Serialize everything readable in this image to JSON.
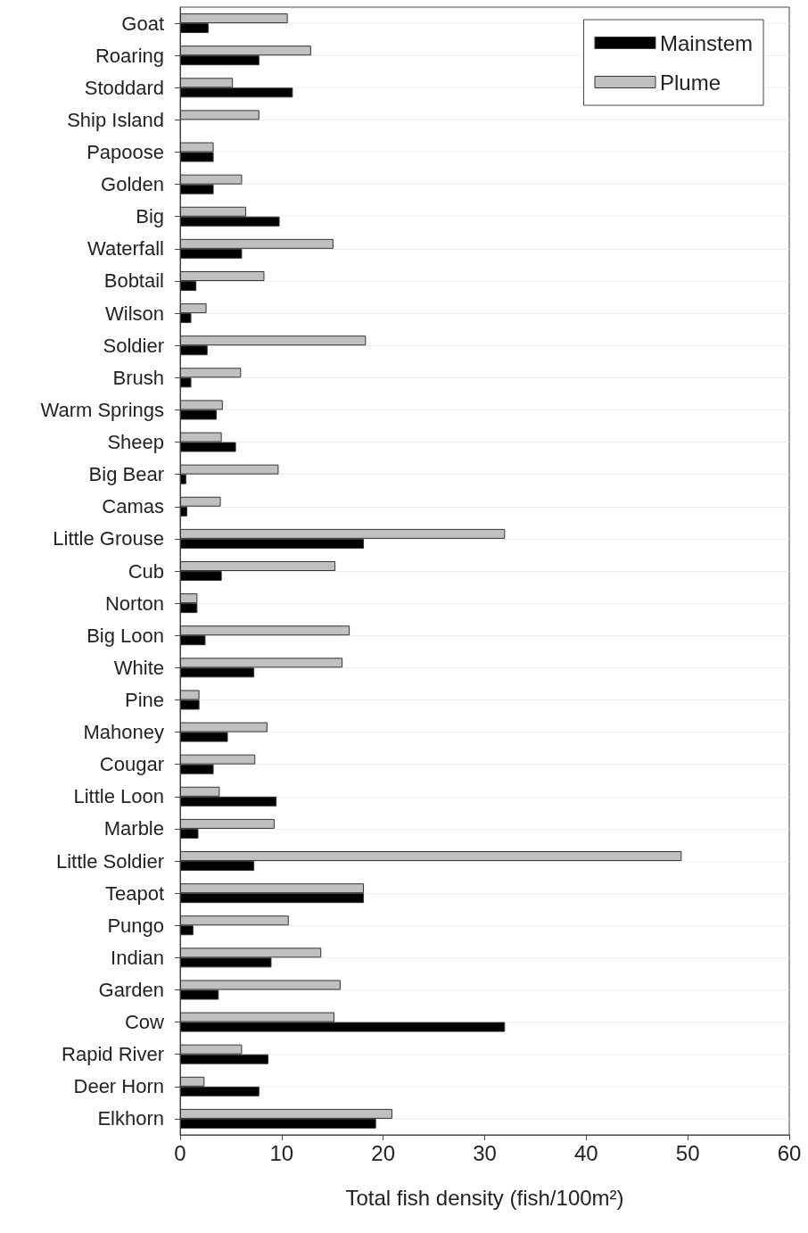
{
  "chart_data": {
    "type": "bar",
    "orientation": "horizontal",
    "xlabel": "Total fish density (fish/100m²)",
    "categories": [
      "Goat",
      "Roaring",
      "Stoddard",
      "Ship Island",
      "Papoose",
      "Golden",
      "Big",
      "Waterfall",
      "Bobtail",
      "Wilson",
      "Soldier",
      "Brush",
      "Warm Springs",
      "Sheep",
      "Big Bear",
      "Camas",
      "Little Grouse",
      "Cub",
      "Norton",
      "Big Loon",
      "White",
      "Pine",
      "Mahoney",
      "Cougar",
      "Little Loon",
      "Marble",
      "Little Soldier",
      "Teapot",
      "Pungo",
      "Indian",
      "Garden",
      "Cow",
      "Rapid River",
      "Deer Horn",
      "Elkhorn"
    ],
    "series": [
      {
        "name": "Mainstem",
        "color": "#000000",
        "values": [
          2.8,
          7.8,
          11.1,
          null,
          3.3,
          3.3,
          9.8,
          6.1,
          1.6,
          1.1,
          2.7,
          1.1,
          3.6,
          5.5,
          0.6,
          0.7,
          18.1,
          4.1,
          1.7,
          2.5,
          7.3,
          1.9,
          4.7,
          3.3,
          9.5,
          1.8,
          7.3,
          18.1,
          1.3,
          9.0,
          3.8,
          32.0,
          8.7,
          7.8,
          19.3
        ]
      },
      {
        "name": "Plume",
        "color": "#c0c0c0",
        "values": [
          10.6,
          12.9,
          5.2,
          7.8,
          3.3,
          6.1,
          6.5,
          15.1,
          8.3,
          2.6,
          18.3,
          6.0,
          4.2,
          4.1,
          9.7,
          4.0,
          32.0,
          15.3,
          1.7,
          16.7,
          16.0,
          1.9,
          8.6,
          7.4,
          3.9,
          9.3,
          49.4,
          18.1,
          10.7,
          13.9,
          15.8,
          15.2,
          6.1,
          2.4,
          20.9
        ]
      }
    ],
    "xlim": [
      0,
      60
    ],
    "xticks": [
      0,
      10,
      20,
      30,
      40,
      50,
      60
    ],
    "grid": "y",
    "legend": "top right"
  }
}
